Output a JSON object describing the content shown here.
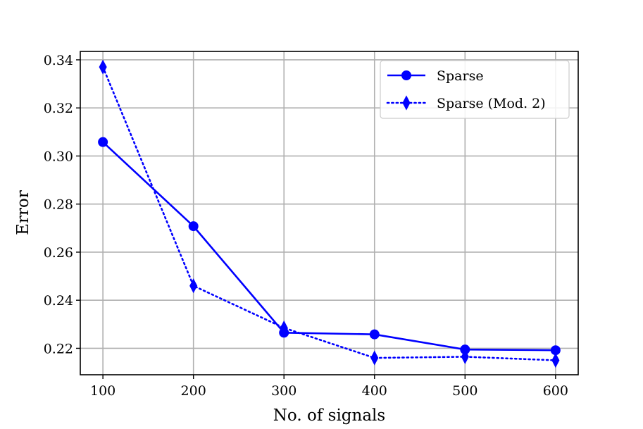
{
  "chart_data": {
    "type": "line",
    "x": [
      100,
      200,
      300,
      400,
      500,
      600
    ],
    "series": [
      {
        "name": "Sparse",
        "values": [
          0.3058,
          0.2708,
          0.2265,
          0.2258,
          0.2195,
          0.2192
        ],
        "color": "#0000ff",
        "line_style": "solid",
        "marker": "circle"
      },
      {
        "name": "Sparse (Mod. 2)",
        "values": [
          0.337,
          0.246,
          0.2285,
          0.216,
          0.2165,
          0.215
        ],
        "color": "#0000ff",
        "line_style": "dotted",
        "marker": "thin-diamond"
      }
    ],
    "xlabel": "No. of signals",
    "ylabel": "Error",
    "xlim": [
      75,
      625
    ],
    "ylim": [
      0.209,
      0.3435
    ],
    "xticks": [
      100,
      200,
      300,
      400,
      500,
      600
    ],
    "xtick_labels": [
      "100",
      "200",
      "300",
      "400",
      "500",
      "600"
    ],
    "yticks": [
      0.22,
      0.24,
      0.26,
      0.28,
      0.3,
      0.32,
      0.34
    ],
    "ytick_labels": [
      "0.22",
      "0.24",
      "0.26",
      "0.28",
      "0.30",
      "0.32",
      "0.34"
    ],
    "grid": true,
    "legend_position": "top-right"
  }
}
